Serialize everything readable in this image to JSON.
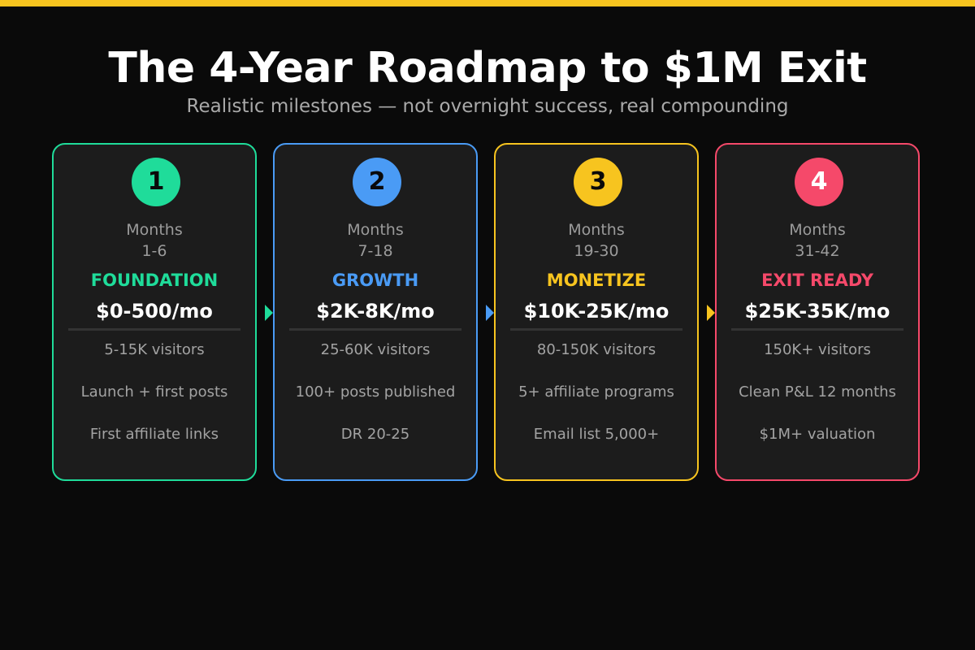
{
  "header": {
    "title": "The 4-Year Roadmap to $1M Exit",
    "subtitle": "Realistic milestones — not overnight success, real compounding"
  },
  "colors": {
    "accent_bar": "#f7c41f",
    "background": "#0a0a0a",
    "card_background": "#1c1c1c"
  },
  "phases": [
    {
      "number": "1",
      "months_label": "Months",
      "months_range": "1-6",
      "name": "FOUNDATION",
      "revenue": "$0-500/mo",
      "color": "#1fdc9a",
      "number_color": "#0a0a0a",
      "milestones": [
        "5-15K visitors",
        "Launch + first posts",
        "First affiliate links"
      ]
    },
    {
      "number": "2",
      "months_label": "Months",
      "months_range": "7-18",
      "name": "GROWTH",
      "revenue": "$2K-8K/mo",
      "color": "#4a9bf5",
      "number_color": "#0a0a0a",
      "milestones": [
        "25-60K visitors",
        "100+ posts published",
        "DR 20-25"
      ]
    },
    {
      "number": "3",
      "months_label": "Months",
      "months_range": "19-30",
      "name": "MONETIZE",
      "revenue": "$10K-25K/mo",
      "color": "#f7c41f",
      "number_color": "#0a0a0a",
      "milestones": [
        "80-150K visitors",
        "5+ affiliate programs",
        "Email list 5,000+"
      ]
    },
    {
      "number": "4",
      "months_label": "Months",
      "months_range": "31-42",
      "name": "EXIT READY",
      "revenue": "$25K-35K/mo",
      "color": "#f5496a",
      "number_color": "#ffffff",
      "milestones": [
        "150K+ visitors",
        "Clean P&L 12 months",
        "$1M+ valuation"
      ]
    }
  ]
}
